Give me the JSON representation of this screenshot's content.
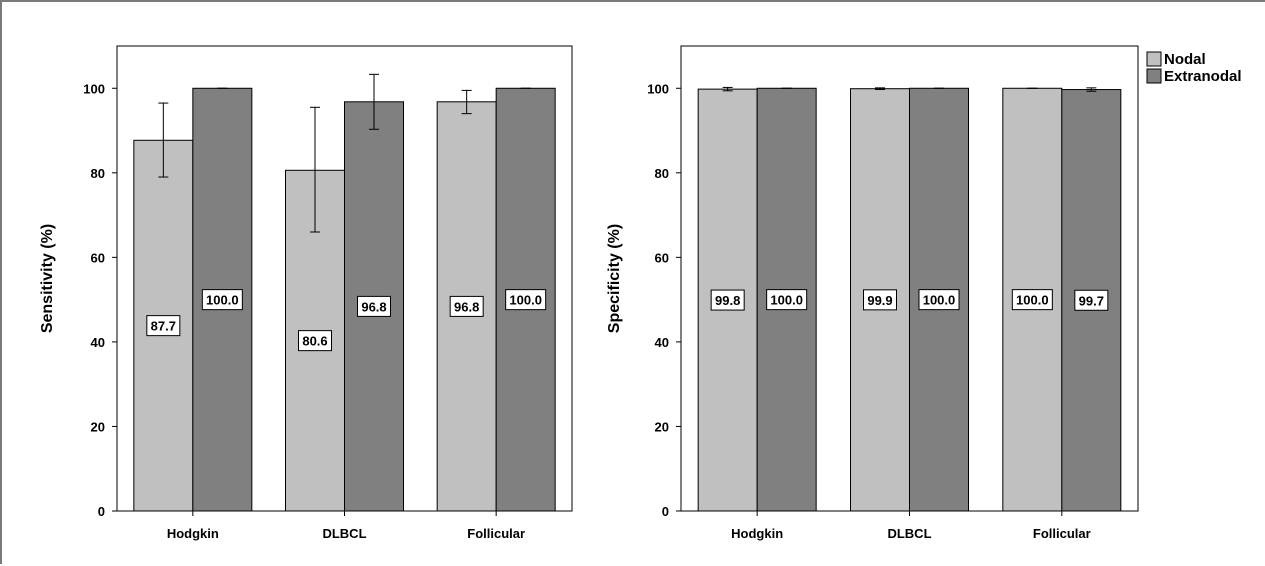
{
  "chart_data": [
    {
      "type": "bar",
      "categories": [
        "Hodgkin",
        "DLBCL",
        "Follicular"
      ],
      "ylabel": "Sensitivity (%)",
      "xlabel": "",
      "ylim": [
        0,
        110
      ],
      "yticks": [
        0,
        20,
        40,
        60,
        80,
        100
      ],
      "grid": false,
      "series": [
        {
          "name": "Nodal",
          "color": "#c0c0c0",
          "values": [
            87.7,
            80.6,
            96.8
          ],
          "value_labels": [
            "87.7",
            "80.6",
            "96.8"
          ],
          "error_low": [
            79.0,
            66.0,
            94.0
          ],
          "error_high": [
            96.5,
            95.5,
            99.5
          ]
        },
        {
          "name": "Extranodal",
          "color": "#808080",
          "values": [
            100.0,
            96.8,
            100.0
          ],
          "value_labels": [
            "100.0",
            "96.8",
            "100.0"
          ],
          "error_low": [
            100.0,
            90.3,
            100.0
          ],
          "error_high": [
            100.0,
            103.3,
            100.0
          ]
        }
      ]
    },
    {
      "type": "bar",
      "categories": [
        "Hodgkin",
        "DLBCL",
        "Follicular"
      ],
      "ylabel": "Specificity (%)",
      "xlabel": "",
      "ylim": [
        0,
        110
      ],
      "yticks": [
        0,
        20,
        40,
        60,
        80,
        100
      ],
      "grid": false,
      "legend": "top-right",
      "series": [
        {
          "name": "Nodal",
          "color": "#c0c0c0",
          "values": [
            99.8,
            99.9,
            100.0
          ],
          "value_labels": [
            "99.8",
            "99.9",
            "100.0"
          ],
          "error_low": [
            99.4,
            99.7,
            100.0
          ],
          "error_high": [
            100.2,
            100.1,
            100.0
          ]
        },
        {
          "name": "Extranodal",
          "color": "#808080",
          "values": [
            100.0,
            100.0,
            99.7
          ],
          "value_labels": [
            "100.0",
            "100.0",
            "99.7"
          ],
          "error_low": [
            100.0,
            100.0,
            99.3
          ],
          "error_high": [
            100.0,
            100.0,
            100.1
          ]
        }
      ]
    }
  ],
  "legend": {
    "items": [
      {
        "label": "Nodal",
        "color": "#c0c0c0"
      },
      {
        "label": "Extranodal",
        "color": "#808080"
      }
    ]
  }
}
